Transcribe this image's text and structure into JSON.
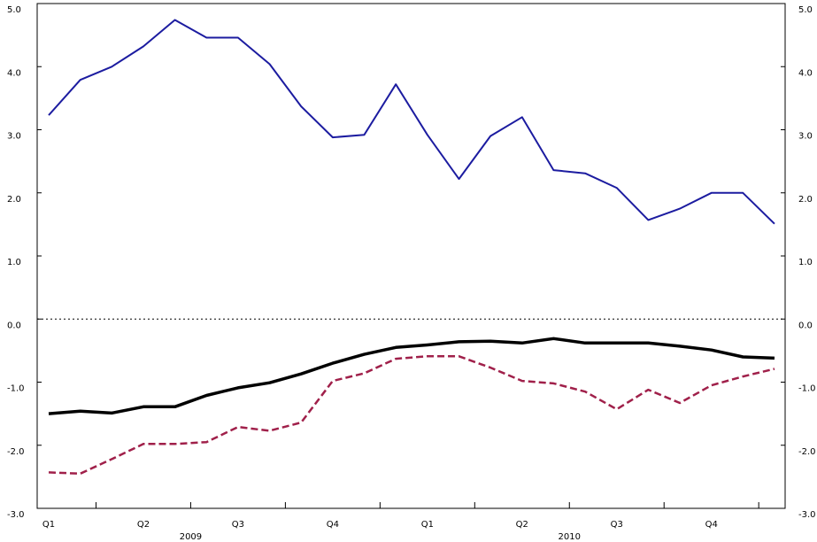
{
  "chart_data": {
    "type": "line",
    "categories": [
      "Q1",
      null,
      null,
      "Q2",
      null,
      null,
      "Q3",
      null,
      null,
      "Q4",
      null,
      null,
      "Q1",
      null,
      null,
      "Q2",
      null,
      null,
      "Q3",
      null,
      null,
      "Q4",
      null,
      null
    ],
    "year_labels": [
      "2009",
      "2010"
    ],
    "series": [
      {
        "color": "#1c1ca0",
        "dash": false,
        "width": 2,
        "values": [
          3.23,
          3.79,
          4.0,
          4.32,
          4.74,
          4.46,
          4.46,
          4.04,
          3.37,
          2.88,
          2.92,
          3.72,
          2.92,
          2.22,
          2.9,
          3.2,
          2.36,
          2.31,
          2.08,
          1.57,
          1.75,
          2.0,
          2.0,
          1.51
        ]
      },
      {
        "color": "#000000",
        "dash": false,
        "width": 3.5,
        "values": [
          -1.5,
          -1.46,
          -1.49,
          -1.39,
          -1.39,
          -1.21,
          -1.09,
          -1.01,
          -0.87,
          -0.7,
          -0.56,
          -0.45,
          -0.41,
          -0.36,
          -0.35,
          -0.38,
          -0.31,
          -0.38,
          -0.38,
          -0.38,
          -0.43,
          -0.49,
          -0.6,
          -0.62
        ]
      },
      {
        "color": "#a0204a",
        "dash": true,
        "width": 2.5,
        "values": [
          -2.43,
          -2.45,
          -2.22,
          -1.98,
          -1.98,
          -1.95,
          -1.71,
          -1.77,
          -1.64,
          -0.98,
          -0.86,
          -0.63,
          -0.59,
          -0.59,
          -0.77,
          -0.98,
          -1.02,
          -1.15,
          -1.43,
          -1.12,
          -1.33,
          -1.05,
          -0.91,
          -0.79
        ]
      }
    ],
    "ylim": [
      -3,
      5
    ],
    "yticks": [
      {
        "value": -3,
        "label": "-3.0"
      },
      {
        "value": -2,
        "label": "-2.0"
      },
      {
        "value": -1,
        "label": "-1.0"
      },
      {
        "value": 0,
        "label": "0.0"
      },
      {
        "value": 1,
        "label": "1.0"
      },
      {
        "value": 2,
        "label": "2.0"
      },
      {
        "value": 3,
        "label": "3.0"
      },
      {
        "value": 4,
        "label": "4.0"
      },
      {
        "value": 5,
        "label": "5.0"
      }
    ],
    "right_axis": true,
    "zero_line": true
  }
}
